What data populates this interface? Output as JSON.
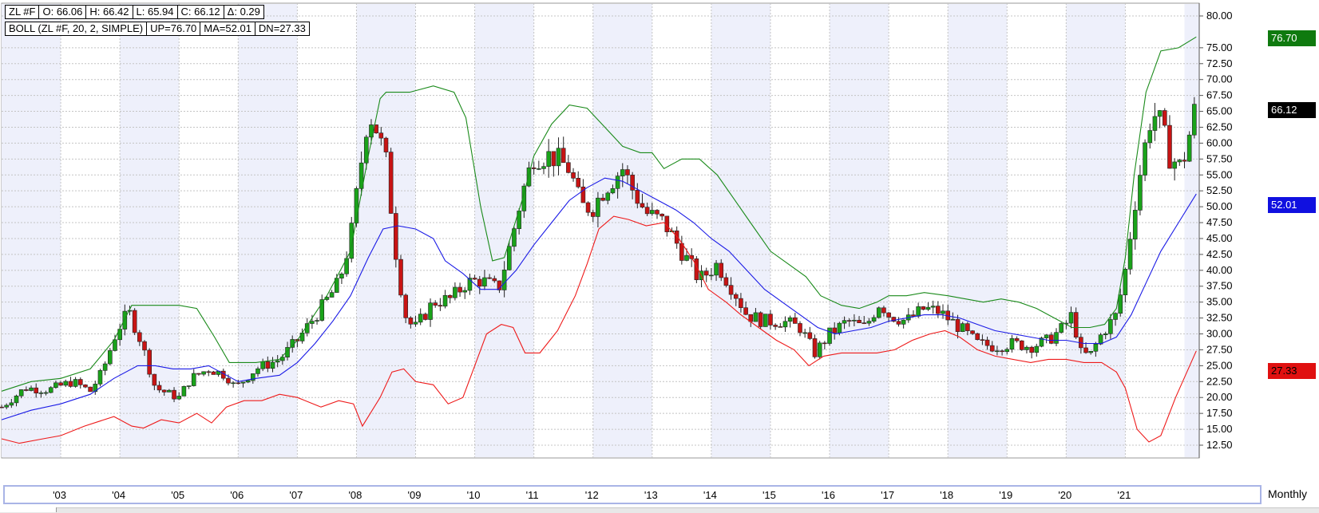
{
  "header": {
    "symbol": "ZL #F",
    "open": "O: 66.06",
    "high": "H: 66.42",
    "low": "L: 65.94",
    "close": "C: 66.12",
    "change": "Δ: 0.29"
  },
  "indicator": {
    "name": "BOLL (ZL #F, 20, 2, SIMPLE)",
    "up": "UP=76.70",
    "ma": "MA=52.01",
    "dn": "DN=27.33"
  },
  "price_tags": {
    "up": "76.70",
    "close": "66.12",
    "ma": "52.01",
    "dn": "27.33"
  },
  "period": "Monthly",
  "colors": {
    "up_candle": "#1aa31a",
    "down_candle": "#c81414",
    "upper_band": "#1a8a1a",
    "middle_band": "#1a1ae6",
    "lower_band": "#ee1a1a",
    "grid": "#c4c4c4",
    "stripe": "#eef0fb"
  },
  "chart_data": {
    "type": "candlestick",
    "ylim": [
      12.5,
      80
    ],
    "yticks": [
      "12.50",
      "15.00",
      "17.50",
      "20.00",
      "22.50",
      "25.00",
      "27.50",
      "30.00",
      "32.50",
      "35.00",
      "37.50",
      "40.00",
      "42.50",
      "45.00",
      "47.50",
      "50.00",
      "52.50",
      "55.00",
      "57.50",
      "60.00",
      "62.50",
      "65.00",
      "67.50",
      "70.00",
      "72.50",
      "75.00",
      "80.00"
    ],
    "xticks": [
      "'03",
      "'04",
      "'05",
      "'06",
      "'07",
      "'08",
      "'09",
      "'10",
      "'11",
      "'12",
      "'13",
      "'14",
      "'15",
      "'16",
      "'17",
      "'18",
      "'19",
      "'20",
      "'21"
    ],
    "close_anchors": [
      [
        2002.0,
        18.5
      ],
      [
        2002.4,
        21.5
      ],
      [
        2002.8,
        21.2
      ],
      [
        2003.2,
        22.5
      ],
      [
        2003.5,
        21.0
      ],
      [
        2003.7,
        24.0
      ],
      [
        2003.95,
        30.5
      ],
      [
        2004.15,
        33.5
      ],
      [
        2004.35,
        29.0
      ],
      [
        2004.6,
        21.5
      ],
      [
        2004.9,
        20.3
      ],
      [
        2005.0,
        20.0
      ],
      [
        2005.2,
        23.0
      ],
      [
        2005.5,
        24.5
      ],
      [
        2005.8,
        23.5
      ],
      [
        2005.95,
        21.5
      ],
      [
        2006.3,
        24.5
      ],
      [
        2006.7,
        26.0
      ],
      [
        2007.0,
        29.0
      ],
      [
        2007.4,
        34.0
      ],
      [
        2007.7,
        38.0
      ],
      [
        2007.9,
        45.0
      ],
      [
        2008.05,
        55.0
      ],
      [
        2008.2,
        65.0
      ],
      [
        2008.35,
        62.0
      ],
      [
        2008.5,
        57.0
      ],
      [
        2008.7,
        40.0
      ],
      [
        2008.85,
        32.0
      ],
      [
        2009.0,
        31.0
      ],
      [
        2009.3,
        35.0
      ],
      [
        2009.6,
        35.5
      ],
      [
        2009.85,
        38.0
      ],
      [
        2010.1,
        38.5
      ],
      [
        2010.4,
        37.0
      ],
      [
        2010.6,
        44.0
      ],
      [
        2010.8,
        52.0
      ],
      [
        2011.0,
        58.0
      ],
      [
        2011.3,
        58.0
      ],
      [
        2011.6,
        56.0
      ],
      [
        2011.8,
        50.0
      ],
      [
        2012.0,
        50.0
      ],
      [
        2012.2,
        53.0
      ],
      [
        2012.5,
        56.0
      ],
      [
        2012.65,
        53.0
      ],
      [
        2012.9,
        49.0
      ],
      [
        2013.2,
        47.5
      ],
      [
        2013.5,
        43.0
      ],
      [
        2013.8,
        38.5
      ],
      [
        2014.1,
        41.0
      ],
      [
        2014.4,
        36.5
      ],
      [
        2014.6,
        33.0
      ],
      [
        2014.9,
        32.0
      ],
      [
        2015.2,
        32.0
      ],
      [
        2015.5,
        31.0
      ],
      [
        2015.75,
        27.0
      ],
      [
        2016.0,
        30.0
      ],
      [
        2016.3,
        32.0
      ],
      [
        2016.6,
        31.0
      ],
      [
        2016.85,
        35.0
      ],
      [
        2017.0,
        33.0
      ],
      [
        2017.3,
        32.0
      ],
      [
        2017.6,
        34.0
      ],
      [
        2017.85,
        33.5
      ],
      [
        2018.2,
        31.0
      ],
      [
        2018.5,
        28.5
      ],
      [
        2018.8,
        28.0
      ],
      [
        2019.1,
        28.5
      ],
      [
        2019.4,
        28.0
      ],
      [
        2019.7,
        29.0
      ],
      [
        2019.95,
        31.0
      ],
      [
        2020.1,
        33.0
      ],
      [
        2020.25,
        27.0
      ],
      [
        2020.4,
        26.5
      ],
      [
        2020.6,
        30.0
      ],
      [
        2020.85,
        33.0
      ],
      [
        2021.0,
        40.0
      ],
      [
        2021.15,
        50.0
      ],
      [
        2021.3,
        58.0
      ],
      [
        2021.45,
        65.0
      ],
      [
        2021.6,
        63.0
      ],
      [
        2021.75,
        58.0
      ],
      [
        2021.95,
        56.0
      ],
      [
        2022.1,
        62.0
      ],
      [
        2022.2,
        66.12
      ]
    ],
    "upper_band": [
      [
        2002.0,
        21.0
      ],
      [
        2002.5,
        22.5
      ],
      [
        2003.0,
        23.0
      ],
      [
        2003.5,
        24.5
      ],
      [
        2003.9,
        29.0
      ],
      [
        2004.2,
        34.5
      ],
      [
        2004.5,
        34.5
      ],
      [
        2005.0,
        34.5
      ],
      [
        2005.3,
        34.0
      ],
      [
        2005.6,
        29.5
      ],
      [
        2005.85,
        25.5
      ],
      [
        2006.3,
        25.5
      ],
      [
        2006.7,
        26.0
      ],
      [
        2007.0,
        29.0
      ],
      [
        2007.5,
        36.0
      ],
      [
        2007.9,
        43.0
      ],
      [
        2008.2,
        58.0
      ],
      [
        2008.4,
        67.0
      ],
      [
        2008.5,
        68.0
      ],
      [
        2008.9,
        68.0
      ],
      [
        2009.3,
        69.0
      ],
      [
        2009.65,
        68.0
      ],
      [
        2009.85,
        64.0
      ],
      [
        2010.1,
        50.0
      ],
      [
        2010.3,
        41.5
      ],
      [
        2010.5,
        42.0
      ],
      [
        2010.8,
        51.0
      ],
      [
        2011.0,
        58.0
      ],
      [
        2011.3,
        63.0
      ],
      [
        2011.6,
        66.0
      ],
      [
        2011.9,
        65.5
      ],
      [
        2012.2,
        62.5
      ],
      [
        2012.5,
        59.5
      ],
      [
        2012.8,
        58.5
      ],
      [
        2013.0,
        58.5
      ],
      [
        2013.2,
        56.0
      ],
      [
        2013.5,
        57.5
      ],
      [
        2013.8,
        57.5
      ],
      [
        2014.1,
        55.0
      ],
      [
        2014.4,
        51.0
      ],
      [
        2014.7,
        47.0
      ],
      [
        2015.0,
        43.0
      ],
      [
        2015.3,
        41.0
      ],
      [
        2015.6,
        39.0
      ],
      [
        2015.85,
        36.0
      ],
      [
        2016.2,
        34.5
      ],
      [
        2016.5,
        34.0
      ],
      [
        2016.8,
        35.0
      ],
      [
        2017.0,
        36.0
      ],
      [
        2017.3,
        36.0
      ],
      [
        2017.6,
        36.5
      ],
      [
        2018.0,
        36.0
      ],
      [
        2018.3,
        35.5
      ],
      [
        2018.6,
        35.0
      ],
      [
        2018.9,
        35.5
      ],
      [
        2019.2,
        35.0
      ],
      [
        2019.5,
        34.0
      ],
      [
        2019.8,
        32.5
      ],
      [
        2020.1,
        31.0
      ],
      [
        2020.4,
        31.0
      ],
      [
        2020.65,
        31.5
      ],
      [
        2020.85,
        34.0
      ],
      [
        2021.0,
        42.0
      ],
      [
        2021.15,
        55.0
      ],
      [
        2021.35,
        68.0
      ],
      [
        2021.6,
        74.5
      ],
      [
        2021.9,
        75.0
      ],
      [
        2022.2,
        76.7
      ]
    ],
    "middle_band": [
      [
        2002.0,
        16.5
      ],
      [
        2002.5,
        18.0
      ],
      [
        2003.0,
        19.0
      ],
      [
        2003.5,
        20.5
      ],
      [
        2003.9,
        23.0
      ],
      [
        2004.3,
        25.0
      ],
      [
        2004.6,
        25.0
      ],
      [
        2004.9,
        24.5
      ],
      [
        2005.2,
        24.5
      ],
      [
        2005.5,
        25.0
      ],
      [
        2005.8,
        23.5
      ],
      [
        2006.0,
        22.5
      ],
      [
        2006.3,
        23.0
      ],
      [
        2006.7,
        23.5
      ],
      [
        2007.0,
        25.5
      ],
      [
        2007.3,
        28.5
      ],
      [
        2007.6,
        32.0
      ],
      [
        2007.9,
        36.0
      ],
      [
        2008.2,
        42.0
      ],
      [
        2008.45,
        46.5
      ],
      [
        2008.7,
        47.0
      ],
      [
        2009.0,
        46.5
      ],
      [
        2009.3,
        45.0
      ],
      [
        2009.5,
        41.5
      ],
      [
        2009.8,
        39.5
      ],
      [
        2010.1,
        37.0
      ],
      [
        2010.4,
        37.0
      ],
      [
        2010.7,
        40.0
      ],
      [
        2011.0,
        44.0
      ],
      [
        2011.3,
        47.5
      ],
      [
        2011.6,
        51.0
      ],
      [
        2011.9,
        53.0
      ],
      [
        2012.2,
        54.5
      ],
      [
        2012.5,
        54.0
      ],
      [
        2012.8,
        52.5
      ],
      [
        2013.1,
        51.0
      ],
      [
        2013.4,
        49.5
      ],
      [
        2013.7,
        47.5
      ],
      [
        2014.0,
        45.0
      ],
      [
        2014.3,
        43.0
      ],
      [
        2014.6,
        40.0
      ],
      [
        2014.9,
        37.0
      ],
      [
        2015.2,
        35.0
      ],
      [
        2015.5,
        33.0
      ],
      [
        2015.8,
        31.0
      ],
      [
        2016.1,
        30.0
      ],
      [
        2016.4,
        30.5
      ],
      [
        2016.7,
        31.0
      ],
      [
        2017.0,
        32.0
      ],
      [
        2017.3,
        32.5
      ],
      [
        2017.6,
        33.0
      ],
      [
        2017.9,
        33.0
      ],
      [
        2018.2,
        32.5
      ],
      [
        2018.5,
        31.5
      ],
      [
        2018.8,
        30.5
      ],
      [
        2019.1,
        30.0
      ],
      [
        2019.4,
        29.5
      ],
      [
        2019.7,
        29.0
      ],
      [
        2020.0,
        29.0
      ],
      [
        2020.3,
        28.5
      ],
      [
        2020.6,
        28.5
      ],
      [
        2020.85,
        29.5
      ],
      [
        2021.1,
        33.0
      ],
      [
        2021.35,
        38.0
      ],
      [
        2021.6,
        43.0
      ],
      [
        2021.9,
        47.5
      ],
      [
        2022.2,
        52.01
      ]
    ],
    "lower_band": [
      [
        2002.0,
        13.5
      ],
      [
        2002.3,
        12.8
      ],
      [
        2002.7,
        13.5
      ],
      [
        2003.0,
        14.0
      ],
      [
        2003.4,
        15.5
      ],
      [
        2003.9,
        17.0
      ],
      [
        2004.2,
        15.5
      ],
      [
        2004.4,
        15.2
      ],
      [
        2004.7,
        16.5
      ],
      [
        2005.0,
        16.0
      ],
      [
        2005.3,
        17.5
      ],
      [
        2005.55,
        16.0
      ],
      [
        2005.8,
        18.5
      ],
      [
        2006.1,
        19.5
      ],
      [
        2006.4,
        19.5
      ],
      [
        2006.7,
        20.5
      ],
      [
        2007.0,
        20.0
      ],
      [
        2007.4,
        18.5
      ],
      [
        2007.7,
        19.5
      ],
      [
        2007.95,
        19.0
      ],
      [
        2008.1,
        15.5
      ],
      [
        2008.4,
        20.0
      ],
      [
        2008.6,
        24.0
      ],
      [
        2008.8,
        24.5
      ],
      [
        2009.0,
        22.5
      ],
      [
        2009.3,
        22.0
      ],
      [
        2009.55,
        19.0
      ],
      [
        2009.8,
        20.0
      ],
      [
        2010.0,
        25.0
      ],
      [
        2010.2,
        30.0
      ],
      [
        2010.45,
        31.5
      ],
      [
        2010.65,
        31.0
      ],
      [
        2010.85,
        27.0
      ],
      [
        2011.1,
        27.0
      ],
      [
        2011.4,
        30.5
      ],
      [
        2011.7,
        36.0
      ],
      [
        2011.9,
        41.0
      ],
      [
        2012.1,
        46.5
      ],
      [
        2012.35,
        48.5
      ],
      [
        2012.6,
        48.0
      ],
      [
        2012.9,
        47.0
      ],
      [
        2013.2,
        47.5
      ],
      [
        2013.45,
        45.0
      ],
      [
        2013.7,
        41.5
      ],
      [
        2013.95,
        37.0
      ],
      [
        2014.25,
        35.0
      ],
      [
        2014.5,
        33.0
      ],
      [
        2014.8,
        31.0
      ],
      [
        2015.1,
        29.0
      ],
      [
        2015.4,
        27.5
      ],
      [
        2015.65,
        25.0
      ],
      [
        2015.9,
        26.5
      ],
      [
        2016.2,
        27.0
      ],
      [
        2016.5,
        27.0
      ],
      [
        2016.8,
        27.0
      ],
      [
        2017.1,
        27.5
      ],
      [
        2017.4,
        29.0
      ],
      [
        2017.7,
        30.0
      ],
      [
        2017.95,
        30.5
      ],
      [
        2018.2,
        29.5
      ],
      [
        2018.5,
        27.5
      ],
      [
        2018.8,
        26.5
      ],
      [
        2019.1,
        26.0
      ],
      [
        2019.4,
        25.5
      ],
      [
        2019.7,
        26.0
      ],
      [
        2020.0,
        26.0
      ],
      [
        2020.3,
        25.5
      ],
      [
        2020.6,
        25.5
      ],
      [
        2020.85,
        24.0
      ],
      [
        2021.0,
        21.5
      ],
      [
        2021.2,
        15.0
      ],
      [
        2021.4,
        13.0
      ],
      [
        2021.6,
        14.0
      ],
      [
        2021.85,
        20.0
      ],
      [
        2022.2,
        27.33
      ]
    ]
  }
}
